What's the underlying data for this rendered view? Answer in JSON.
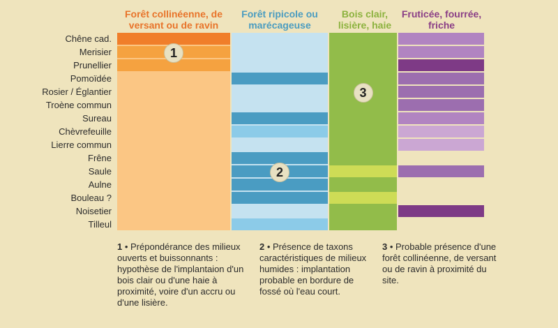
{
  "chart_data": {
    "type": "table",
    "columns": [
      {
        "key": "coll",
        "label": "Forêt collinéenne, de versant ou de ravin",
        "color": "#e8742a"
      },
      {
        "key": "rip",
        "label": "Forêt ripicole ou marécageuse",
        "color": "#4a9cc0"
      },
      {
        "key": "bois",
        "label": "Bois clair, lisière, haie",
        "color": "#8cb23e"
      },
      {
        "key": "frut",
        "label": "Fruticée, fourrée, friche",
        "color": "#8a3e86"
      }
    ],
    "rows": [
      {
        "label": "Chêne cad.",
        "cells": [
          "#f07e2a",
          "#c5e2f0",
          "#92bc4a",
          "#b184c1"
        ]
      },
      {
        "label": "Merisier",
        "cells": [
          "#f5a240",
          "#c5e2f0",
          "#92bc4a",
          "#b184c1"
        ]
      },
      {
        "label": "Prunellier",
        "cells": [
          "#f5a240",
          "#c5e2f0",
          "#92bc4a",
          "#7e3a86"
        ]
      },
      {
        "label": "Pomoïdée",
        "cells": [
          "#fbc684",
          "#4a9cc2",
          "#92bc4a",
          "#9c6eaf"
        ]
      },
      {
        "label": "Rosier / Églantier",
        "cells": [
          "#fbc684",
          null,
          "#92bc4a",
          "#9c6eaf"
        ]
      },
      {
        "label": "Troène commun",
        "cells": [
          "#fbc684",
          null,
          "#92bc4a",
          "#9c6eaf"
        ]
      },
      {
        "label": "Sureau",
        "cells": [
          "#fbc684",
          "#4a9cc2",
          "#92bc4a",
          "#b184c1"
        ]
      },
      {
        "label": "Chèvrefeuille",
        "cells": [
          "#fbc684",
          "#8ccbe8",
          "#92bc4a",
          "#cba7d3"
        ]
      },
      {
        "label": "Lierre commun",
        "cells": [
          "#fbc684",
          null,
          "#92bc4a",
          "#cba7d3"
        ]
      },
      {
        "label": "Frêne",
        "cells": [
          "#fbc684",
          "#4a9cc2",
          "#92bc4a",
          null
        ]
      },
      {
        "label": "Saule",
        "cells": [
          "#fbc684",
          "#4a9cc2",
          "#cedc56",
          "#9c6eaf"
        ]
      },
      {
        "label": "Aulne",
        "cells": [
          "#fbc684",
          "#4a9cc2",
          null,
          null
        ]
      },
      {
        "label": "Bouleau ?",
        "cells": [
          "#fbc684",
          "#4a9cc2",
          "#cedc56",
          null
        ]
      },
      {
        "label": "Noisetier",
        "cells": [
          "#fbc684",
          null,
          "#92bc4a",
          "#7e3a86"
        ]
      },
      {
        "label": "Tilleul",
        "cells": [
          "#fbc684",
          "#8ccbe8",
          "#92bc4a",
          null
        ]
      }
    ],
    "markers": [
      {
        "label": "1",
        "col": 0,
        "row": 1
      },
      {
        "label": "2",
        "col": 1,
        "row": 10
      },
      {
        "label": "3",
        "col": 2,
        "row": 4
      }
    ]
  },
  "notes": [
    {
      "num": "1",
      "text": " • Prépondérance des milieux ouverts et buissonnants : hypothèse de l'implantaion d'un bois clair ou d'une haie à proximité, voire d'un accru ou d'une lisière."
    },
    {
      "num": "2",
      "text": " • Présence de taxons caractéristiques de milieux humides : implantation probable en bordure de fossé où l'eau court."
    },
    {
      "num": "3",
      "text": " • Probable présence d'une forêt collinéenne, de versant ou de ravin à proximité du site."
    }
  ]
}
